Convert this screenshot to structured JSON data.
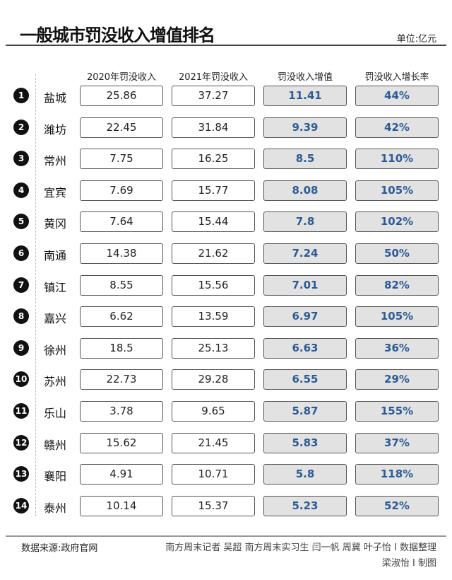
{
  "title": "一般城市罚没收入增值排名",
  "unit": "单位:亿元",
  "headers": [
    "2020年罚没收入",
    "2021年罚没收入",
    "罚没收入增值",
    "罚没收入增长率"
  ],
  "rows": [
    {
      "rank": "1",
      "city": "盐城",
      "v2020": "25.86",
      "v2021": "37.27",
      "increase": "11.41",
      "rate": "44%"
    },
    {
      "rank": "2",
      "city": "潍坊",
      "v2020": "22.45",
      "v2021": "31.84",
      "increase": "9.39",
      "rate": "42%"
    },
    {
      "rank": "3",
      "city": "常州",
      "v2020": "7.75",
      "v2021": "16.25",
      "increase": "8.5",
      "rate": "110%"
    },
    {
      "rank": "4",
      "city": "宜宾",
      "v2020": "7.69",
      "v2021": "15.77",
      "increase": "8.08",
      "rate": "105%"
    },
    {
      "rank": "5",
      "city": "黄冈",
      "v2020": "7.64",
      "v2021": "15.44",
      "increase": "7.8",
      "rate": "102%"
    },
    {
      "rank": "6",
      "city": "南通",
      "v2020": "14.38",
      "v2021": "21.62",
      "increase": "7.24",
      "rate": "50%"
    },
    {
      "rank": "7",
      "city": "镇江",
      "v2020": "8.55",
      "v2021": "15.56",
      "increase": "7.01",
      "rate": "82%"
    },
    {
      "rank": "8",
      "city": "嘉兴",
      "v2020": "6.62",
      "v2021": "13.59",
      "increase": "6.97",
      "rate": "105%"
    },
    {
      "rank": "9",
      "city": "徐州",
      "v2020": "18.5",
      "v2021": "25.13",
      "increase": "6.63",
      "rate": "36%"
    },
    {
      "rank": "10",
      "city": "苏州",
      "v2020": "22.73",
      "v2021": "29.28",
      "increase": "6.55",
      "rate": "29%"
    },
    {
      "rank": "11",
      "city": "乐山",
      "v2020": "3.78",
      "v2021": "9.65",
      "increase": "5.87",
      "rate": "155%"
    },
    {
      "rank": "12",
      "city": "赣州",
      "v2020": "15.62",
      "v2021": "21.45",
      "increase": "5.83",
      "rate": "37%"
    },
    {
      "rank": "13",
      "city": "襄阳",
      "v2020": "4.91",
      "v2021": "10.71",
      "increase": "5.8",
      "rate": "118%"
    },
    {
      "rank": "14",
      "city": "泰州",
      "v2020": "10.14",
      "v2021": "15.37",
      "increase": "5.23",
      "rate": "52%"
    }
  ],
  "footer": {
    "source": "数据来源:政府官网",
    "credit_line1": "南方周末记者 吴超 南方周末实习生 闫一帆 周冀 叶子怡 I 数据整理",
    "credit_line2": "梁淑怡 I 制图"
  },
  "colors": {
    "accent_text": "#2c5b94",
    "highlight_box": "#e2e2e2"
  }
}
